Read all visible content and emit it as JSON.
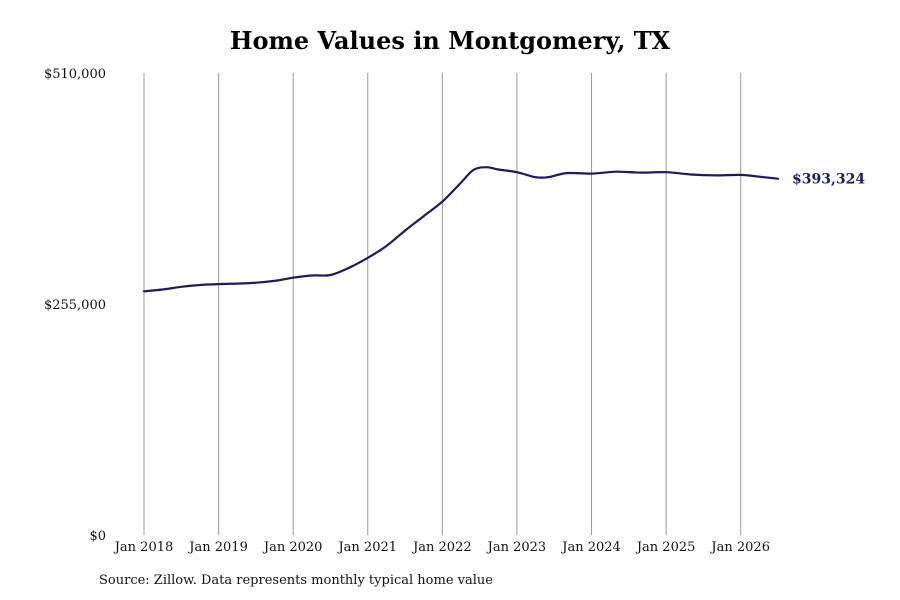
{
  "chart_data": {
    "type": "line",
    "title": "Home Values in Montgomery, TX",
    "source": "Source: Zillow. Data represents monthly typical home value",
    "x_ticks": [
      {
        "date": "2018-01",
        "label": "Jan 2018"
      },
      {
        "date": "2019-01",
        "label": "Jan 2019"
      },
      {
        "date": "2020-01",
        "label": "Jan 2020"
      },
      {
        "date": "2021-01",
        "label": "Jan 2021"
      },
      {
        "date": "2022-01",
        "label": "Jan 2022"
      },
      {
        "date": "2023-01",
        "label": "Jan 2023"
      },
      {
        "date": "2024-01",
        "label": "Jan 2024"
      },
      {
        "date": "2025-01",
        "label": "Jan 2025"
      },
      {
        "date": "2026-01",
        "label": "Jan 2026"
      }
    ],
    "xlim": [
      "2018-01",
      "2026-07"
    ],
    "y_ticks": [
      {
        "value": 0,
        "label": "$0"
      },
      {
        "value": 255000,
        "label": "$255,000"
      },
      {
        "value": 510000,
        "label": "$510,000"
      }
    ],
    "ylim": [
      0,
      510000
    ],
    "grid": "vertical",
    "line_color": "#1a1a66",
    "grid_color": "#999999",
    "end_label": "$393,324",
    "series": [
      {
        "name": "",
        "points": [
          {
            "x": "2018-01",
            "y": 269000
          },
          {
            "x": "2018-04",
            "y": 271000
          },
          {
            "x": "2018-07",
            "y": 274000
          },
          {
            "x": "2018-10",
            "y": 276000
          },
          {
            "x": "2019-01",
            "y": 277000
          },
          {
            "x": "2019-04",
            "y": 277500
          },
          {
            "x": "2019-07",
            "y": 278500
          },
          {
            "x": "2019-10",
            "y": 280500
          },
          {
            "x": "2020-01",
            "y": 284000
          },
          {
            "x": "2020-04",
            "y": 286500
          },
          {
            "x": "2020-07",
            "y": 287000
          },
          {
            "x": "2020-10",
            "y": 295000
          },
          {
            "x": "2021-01",
            "y": 306000
          },
          {
            "x": "2021-04",
            "y": 319000
          },
          {
            "x": "2021-07",
            "y": 336000
          },
          {
            "x": "2021-10",
            "y": 352000
          },
          {
            "x": "2022-01",
            "y": 368000
          },
          {
            "x": "2022-04",
            "y": 389000
          },
          {
            "x": "2022-06",
            "y": 403000
          },
          {
            "x": "2022-08",
            "y": 406000
          },
          {
            "x": "2022-10",
            "y": 403500
          },
          {
            "x": "2023-01",
            "y": 400500
          },
          {
            "x": "2023-04",
            "y": 395000
          },
          {
            "x": "2023-06",
            "y": 395000
          },
          {
            "x": "2023-09",
            "y": 399500
          },
          {
            "x": "2024-01",
            "y": 399000
          },
          {
            "x": "2024-05",
            "y": 401000
          },
          {
            "x": "2024-09",
            "y": 400000
          },
          {
            "x": "2025-01",
            "y": 400500
          },
          {
            "x": "2025-05",
            "y": 398000
          },
          {
            "x": "2025-09",
            "y": 397000
          },
          {
            "x": "2026-01",
            "y": 397500
          },
          {
            "x": "2026-04",
            "y": 395500
          },
          {
            "x": "2026-07",
            "y": 393324
          }
        ]
      }
    ]
  }
}
